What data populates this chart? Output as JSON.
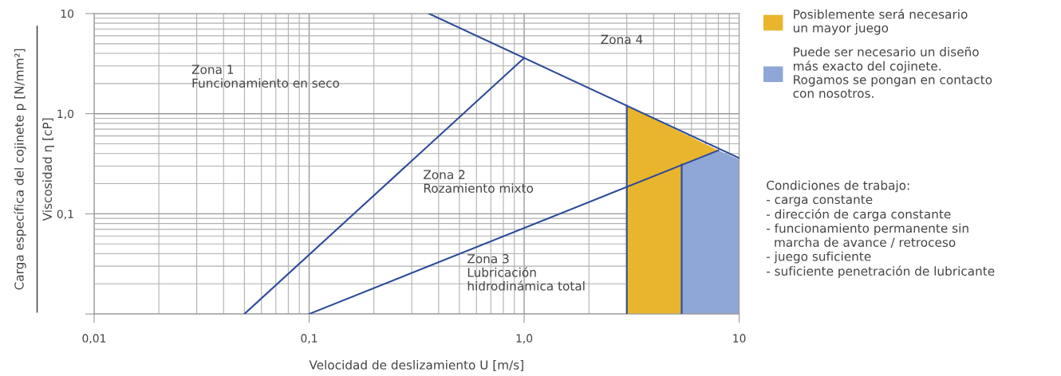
{
  "chart_data": {
    "type": "line",
    "xlabel": "Velocidad de deslizamiento U [m/s]",
    "ylabel": "Carga específica del cojinete p [N/mm²]\nViscosidad η [cP]",
    "log": "xy",
    "grid": true,
    "legend": "right",
    "xlim": [
      0.01,
      10
    ],
    "ylim": [
      0.01,
      10
    ],
    "xticks": [
      {
        "value": 0.01,
        "label": "0,01"
      },
      {
        "value": 0.1,
        "label": "0,1"
      },
      {
        "value": 1,
        "label": "1,0"
      },
      10
    ],
    "yticks": [
      {
        "value": 0.01,
        "label": null
      },
      {
        "value": 0.1,
        "label": "0,1"
      },
      {
        "value": 1,
        "label": "1,0"
      },
      10
    ],
    "series": [
      {
        "type": "area",
        "name": "Posiblemente será necesario\nun mayor juego",
        "color": "#e8b52c",
        "x": [
          3,
          8
        ],
        "values": [
          1.2,
          0.43
        ]
      },
      {
        "type": "area",
        "name": "Puede ser necesario un diseño\nmás exacto del cojinete.\nRogamos se pongan en contacto\ncon nosotros.",
        "color": "#8fa7d6",
        "x": [
          5.4,
          8,
          10
        ],
        "values": [
          0.31,
          0.43,
          0.35
        ]
      },
      {
        "color": "#2e4a9a",
        "x": [
          0.05,
          1.0
        ],
        "values": [
          0.01,
          3.6
        ]
      },
      {
        "color": "#2e4a9a",
        "x": [
          0.36,
          10
        ],
        "values": [
          10,
          0.36
        ]
      },
      {
        "color": "#2e4a9a",
        "x": [
          0.1,
          8
        ],
        "values": [
          0.01,
          0.43
        ]
      },
      {
        "color": "#2e4a9a",
        "x": [
          3,
          3
        ],
        "values": [
          0.01,
          1.2
        ]
      },
      {
        "color": "#2e4a9a",
        "x": [
          5.4,
          5.4
        ],
        "values": [
          0.01,
          0.31
        ]
      }
    ],
    "annotations": [
      "Zona 1\nFuncionamiento en seco",
      "Zona 2\nRozamiento mixto",
      "Zona 3\nLubricación\nhidrodinámica total",
      "Zona 4",
      "Condiciones de trabajo:\n- carga constante\n- dirección de carga constante\n- funcionamiento permanente sin\n  marcha de avance / retroceso\n- juego suficiente\n- suficiente penetración de lubricante"
    ]
  }
}
